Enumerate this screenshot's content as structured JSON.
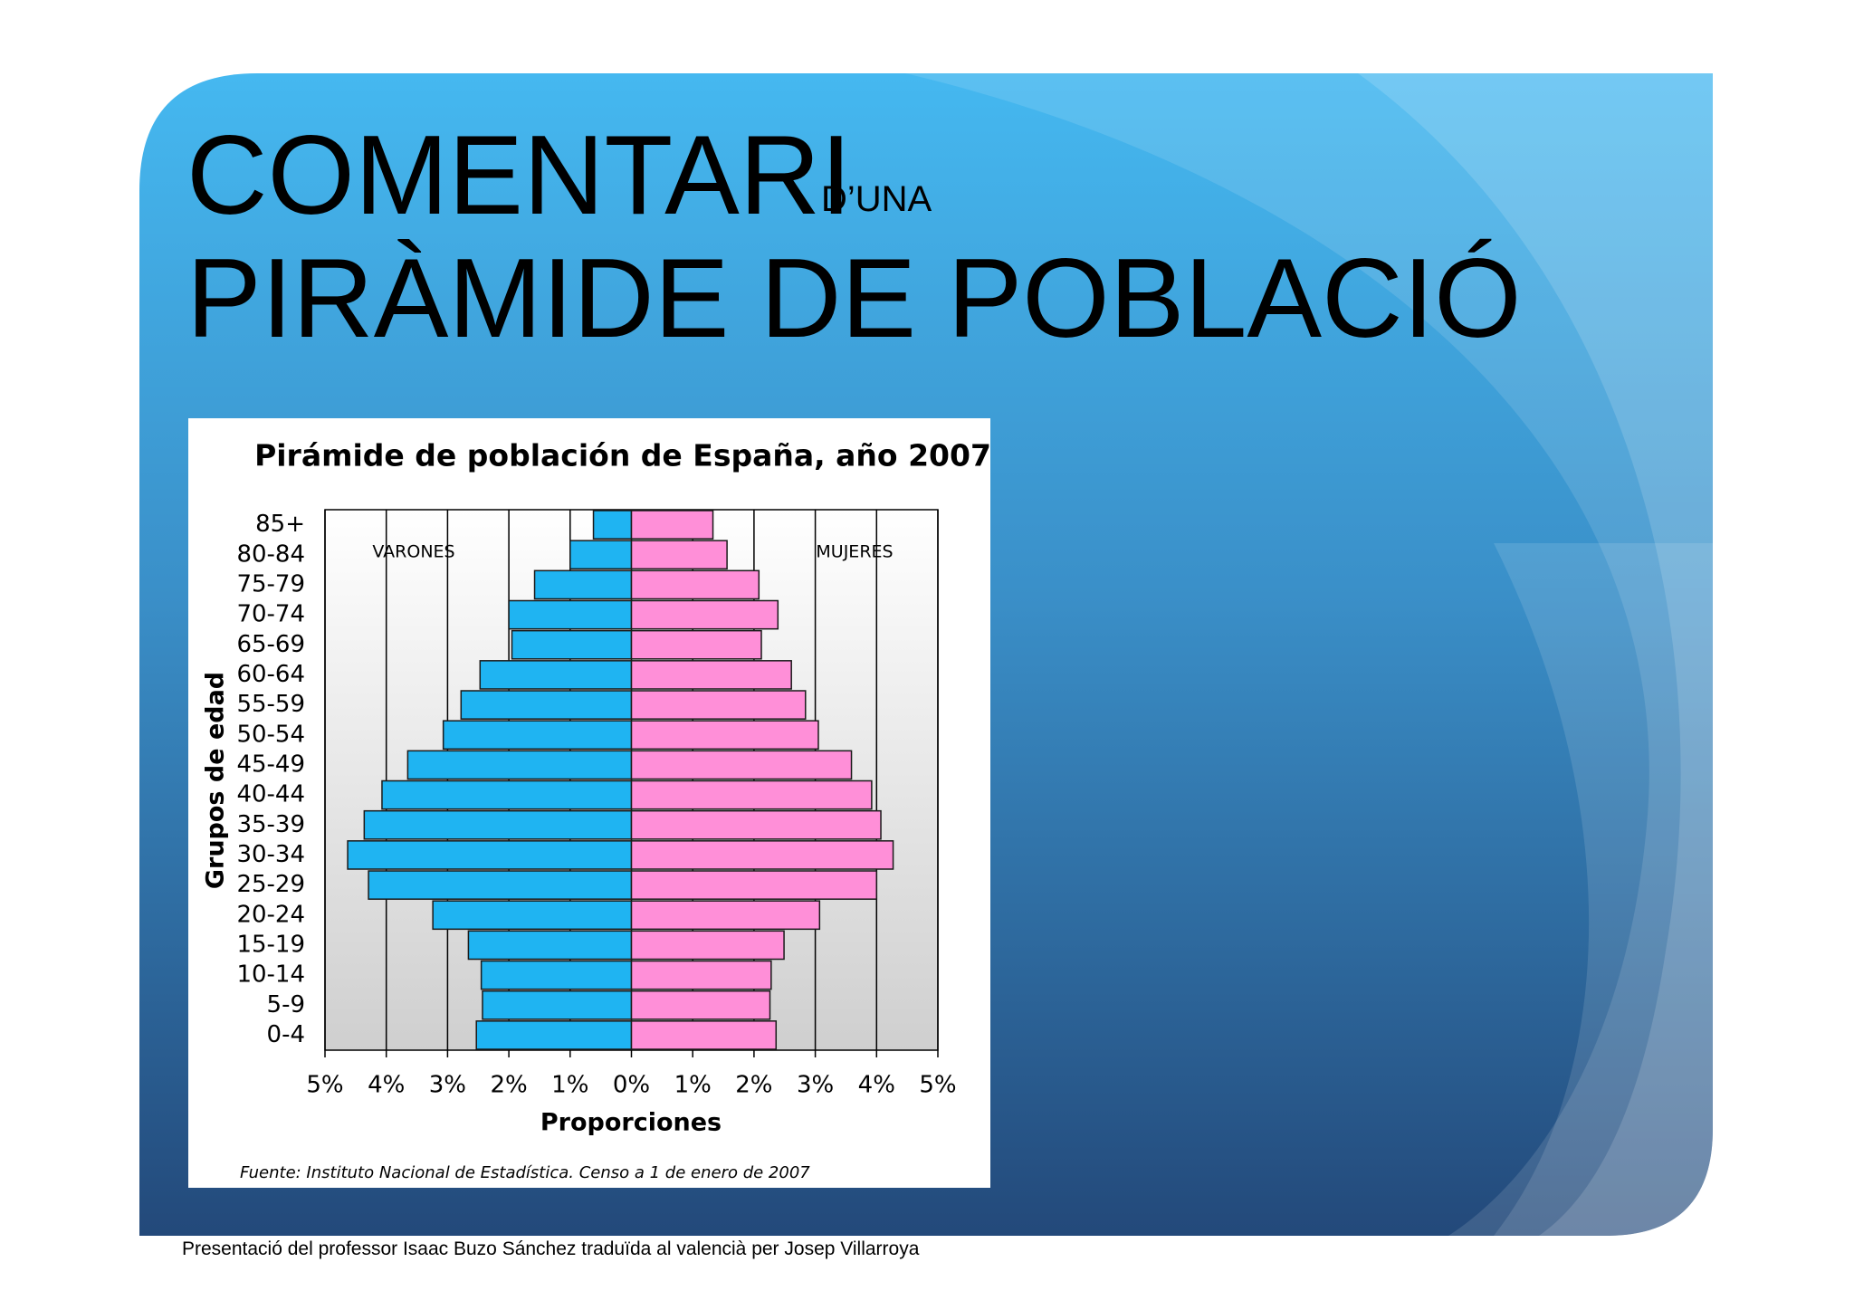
{
  "slide": {
    "title_main": "COMENTARI",
    "title_small": "D’UNA",
    "title_line2": "PIRÀMIDE DE POBLACIÓ",
    "footer": "Presentació del professor Isaac Buzo Sánchez traduïda al valencià per Josep Villarroya"
  },
  "chart_data": {
    "type": "pyramid",
    "title": "Pirámide de población de España, año 2007",
    "x_label": "Proporciones",
    "y_label": "Grupos de edad",
    "source": "Fuente: Instituto Nacional de Estadística. Censo a 1 de enero de 2007",
    "categories": [
      "0-4",
      "5-9",
      "10-14",
      "15-19",
      "20-24",
      "25-29",
      "30-34",
      "35-39",
      "40-44",
      "45-49",
      "50-54",
      "55-59",
      "60-64",
      "65-69",
      "70-74",
      "75-79",
      "80-84",
      "85+"
    ],
    "series": [
      {
        "name": "VARONES",
        "color": "#1fb4f2",
        "values": [
          -2.53,
          -2.43,
          -2.45,
          -2.66,
          -3.24,
          -4.29,
          -4.63,
          -4.36,
          -4.07,
          -3.65,
          -3.07,
          -2.78,
          -2.47,
          -1.95,
          -2.0,
          -1.58,
          -1.0,
          -0.62
        ]
      },
      {
        "name": "MUJERES",
        "color": "#ff8fd8",
        "values": [
          2.36,
          2.26,
          2.28,
          2.49,
          3.07,
          4.0,
          4.27,
          4.07,
          3.92,
          3.59,
          3.05,
          2.84,
          2.61,
          2.12,
          2.39,
          2.08,
          1.56,
          1.33
        ]
      }
    ],
    "xlim": [
      -5,
      5
    ],
    "xticks": [
      {
        "value": -5,
        "label": "5%"
      },
      {
        "value": -4,
        "label": "4%"
      },
      {
        "value": -3,
        "label": "3%"
      },
      {
        "value": -2,
        "label": "2%"
      },
      {
        "value": -1,
        "label": "1%"
      },
      {
        "value": 0,
        "label": "0%"
      },
      {
        "value": 1,
        "label": "1%"
      },
      {
        "value": 2,
        "label": "2%"
      },
      {
        "value": 3,
        "label": "3%"
      },
      {
        "value": 4,
        "label": "4%"
      },
      {
        "value": 5,
        "label": "5%"
      }
    ],
    "grid": true
  }
}
